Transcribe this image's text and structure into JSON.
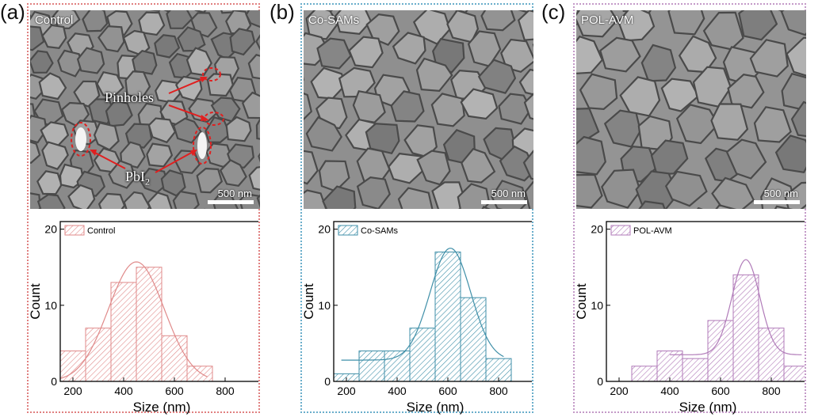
{
  "panels": [
    {
      "letter": "(a)",
      "sem_label": "Control",
      "scale_label": "500 nm",
      "border_color": "#e08080",
      "annotations": {
        "pinholes": "Pinholes",
        "pbi2_main": "PbI",
        "pbi2_sub": "2"
      },
      "sem_tone": "#8a8a8a"
    },
    {
      "letter": "(b)",
      "sem_label": "Co-SAMs",
      "scale_label": "500 nm",
      "border_color": "#6aaecb",
      "sem_tone": "#8f8f8f"
    },
    {
      "letter": "(c)",
      "sem_label": "POL-AVM",
      "scale_label": "500 nm",
      "border_color": "#c49ac8",
      "sem_tone": "#949494"
    }
  ],
  "chart_data": [
    {
      "type": "bar",
      "xlabel": "Size (nm)",
      "ylabel": "Count",
      "xlim": [
        150,
        950
      ],
      "ylim": [
        0,
        21
      ],
      "xticks": [
        200,
        400,
        600,
        800
      ],
      "yticks": [
        0,
        10,
        20
      ],
      "bin_width": 100,
      "series": [
        {
          "name": "Control",
          "color": "#e08a8a",
          "x": [
            200,
            300,
            400,
            500,
            600,
            700
          ],
          "values": [
            4,
            7,
            13,
            15,
            6,
            2
          ]
        }
      ],
      "fit": {
        "mu": 450,
        "sigma": 110,
        "amp": 15.7,
        "base": 0,
        "from": 150,
        "to": 730
      }
    },
    {
      "type": "bar",
      "xlabel": "Size (nm)",
      "ylabel": "Count",
      "xlim": [
        150,
        950
      ],
      "ylim": [
        0,
        21
      ],
      "xticks": [
        200,
        400,
        600,
        800
      ],
      "yticks": [
        0,
        10,
        20
      ],
      "bin_width": 100,
      "series": [
        {
          "name": "Co-SAMs",
          "color": "#3f8fa8",
          "x": [
            200,
            300,
            400,
            500,
            600,
            700,
            800
          ],
          "values": [
            1,
            4,
            4,
            7,
            17,
            11,
            3
          ]
        }
      ],
      "fit": {
        "mu": 610,
        "sigma": 80,
        "amp": 17.5,
        "base": 2.8,
        "from": 180,
        "to": 820
      }
    },
    {
      "type": "bar",
      "xlabel": "Size (nm)",
      "ylabel": "Count",
      "xlim": [
        150,
        950
      ],
      "ylim": [
        0,
        21
      ],
      "xticks": [
        200,
        400,
        600,
        800
      ],
      "yticks": [
        0,
        10,
        20
      ],
      "bin_width": 100,
      "series": [
        {
          "name": "POL-AVM",
          "color": "#b07ab8",
          "x": [
            300,
            400,
            500,
            600,
            700,
            800,
            900
          ],
          "values": [
            2,
            4,
            3,
            8,
            14,
            7,
            2
          ]
        }
      ],
      "fit": {
        "mu": 700,
        "sigma": 55,
        "amp": 16.0,
        "base": 3.5,
        "from": 400,
        "to": 920
      }
    }
  ]
}
